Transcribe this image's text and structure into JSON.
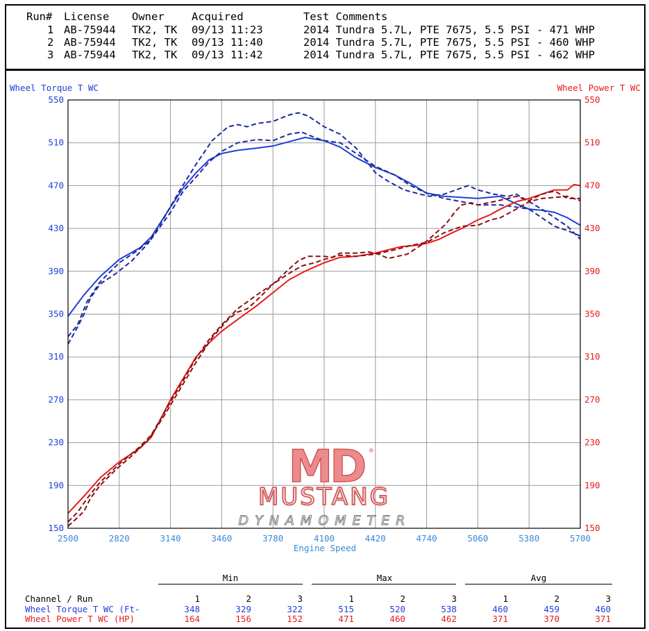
{
  "header": {
    "columns": [
      "Run#",
      "License",
      "Owner",
      "Acquired",
      "Test Comments"
    ],
    "runs": [
      {
        "num": "1",
        "license": "AB-75944",
        "owner": "TK2, TK",
        "acquired": "09/13 11:23",
        "comment": "2014 Tundra 5.7L, PTE 7675, 5.5 PSI - 471 WHP"
      },
      {
        "num": "2",
        "license": "AB-75944",
        "owner": "TK2, TK",
        "acquired": "09/13 11:40",
        "comment": "2014 Tundra 5.7L, PTE 7675, 5.5 PSI - 460 WHP"
      },
      {
        "num": "3",
        "license": "AB-75944",
        "owner": "TK2, TK",
        "acquired": "09/13 11:42",
        "comment": "2014 Tundra 5.7L, PTE 7675, 5.5 PSI - 462 WHP"
      }
    ]
  },
  "chart_data": {
    "type": "line",
    "xlabel": "Engine Speed",
    "ylabel_left": "Wheel Torque T WC",
    "ylabel_right": "Wheel Power T WC",
    "xlim": [
      2500,
      5700
    ],
    "ylim": [
      150,
      550
    ],
    "x_ticks": [
      "2500",
      "2820",
      "3140",
      "3460",
      "3780",
      "4100",
      "4420",
      "4740",
      "5060",
      "5380",
      "5700"
    ],
    "y_ticks": [
      "150",
      "190",
      "230",
      "270",
      "310",
      "350",
      "390",
      "430",
      "470",
      "510",
      "550"
    ],
    "grid": true,
    "colors": {
      "torque_solid": "#1f3fd6",
      "torque_dashed": "#1a2a9a",
      "power_solid": "#e81a1a",
      "power_dashed": "#8b0d0d",
      "left_axis": "#1f3fd6",
      "right_axis": "#e81a1a",
      "tick_text": "#3a8ad6"
    },
    "series": [
      {
        "run": 1,
        "channel": "torque",
        "style": "solid",
        "points": [
          [
            2500,
            348
          ],
          [
            2600,
            368
          ],
          [
            2700,
            385
          ],
          [
            2820,
            401
          ],
          [
            2950,
            412
          ],
          [
            3020,
            422
          ],
          [
            3140,
            450
          ],
          [
            3220,
            468
          ],
          [
            3300,
            482
          ],
          [
            3380,
            494
          ],
          [
            3460,
            500
          ],
          [
            3560,
            503
          ],
          [
            3680,
            505
          ],
          [
            3780,
            507
          ],
          [
            3880,
            511
          ],
          [
            3980,
            515
          ],
          [
            4100,
            512
          ],
          [
            4200,
            506
          ],
          [
            4300,
            496
          ],
          [
            4420,
            487
          ],
          [
            4540,
            480
          ],
          [
            4640,
            472
          ],
          [
            4740,
            463
          ],
          [
            4850,
            460
          ],
          [
            4960,
            459
          ],
          [
            5060,
            458
          ],
          [
            5200,
            460
          ],
          [
            5300,
            453
          ],
          [
            5380,
            448
          ],
          [
            5460,
            447
          ],
          [
            5540,
            445
          ],
          [
            5620,
            440
          ],
          [
            5700,
            433
          ]
        ]
      },
      {
        "run": 2,
        "channel": "torque",
        "style": "dashed",
        "points": [
          [
            2500,
            329
          ],
          [
            2560,
            340
          ],
          [
            2620,
            362
          ],
          [
            2700,
            380
          ],
          [
            2820,
            398
          ],
          [
            2940,
            410
          ],
          [
            3020,
            420
          ],
          [
            3140,
            445
          ],
          [
            3220,
            465
          ],
          [
            3300,
            478
          ],
          [
            3380,
            492
          ],
          [
            3460,
            502
          ],
          [
            3560,
            510
          ],
          [
            3680,
            513
          ],
          [
            3780,
            512
          ],
          [
            3880,
            518
          ],
          [
            3960,
            520
          ],
          [
            4040,
            515
          ],
          [
            4100,
            512
          ],
          [
            4200,
            510
          ],
          [
            4300,
            500
          ],
          [
            4420,
            488
          ],
          [
            4540,
            480
          ],
          [
            4640,
            470
          ],
          [
            4740,
            463
          ],
          [
            4850,
            458
          ],
          [
            4960,
            455
          ],
          [
            5060,
            452
          ],
          [
            5200,
            452
          ],
          [
            5300,
            450
          ],
          [
            5380,
            448
          ],
          [
            5460,
            440
          ],
          [
            5540,
            432
          ],
          [
            5620,
            428
          ],
          [
            5700,
            423
          ]
        ]
      },
      {
        "run": 3,
        "channel": "torque",
        "style": "dashed",
        "points": [
          [
            2500,
            322
          ],
          [
            2560,
            338
          ],
          [
            2600,
            350
          ],
          [
            2640,
            365
          ],
          [
            2700,
            378
          ],
          [
            2800,
            388
          ],
          [
            2900,
            400
          ],
          [
            3000,
            416
          ],
          [
            3100,
            440
          ],
          [
            3200,
            466
          ],
          [
            3300,
            490
          ],
          [
            3400,
            512
          ],
          [
            3500,
            525
          ],
          [
            3560,
            527
          ],
          [
            3620,
            525
          ],
          [
            3680,
            528
          ],
          [
            3780,
            530
          ],
          [
            3880,
            536
          ],
          [
            3940,
            538
          ],
          [
            4000,
            535
          ],
          [
            4100,
            525
          ],
          [
            4200,
            518
          ],
          [
            4300,
            505
          ],
          [
            4380,
            490
          ],
          [
            4420,
            482
          ],
          [
            4500,
            474
          ],
          [
            4600,
            466
          ],
          [
            4700,
            462
          ],
          [
            4760,
            460
          ],
          [
            4850,
            462
          ],
          [
            4960,
            468
          ],
          [
            5000,
            470
          ],
          [
            5060,
            466
          ],
          [
            5160,
            462
          ],
          [
            5250,
            460
          ],
          [
            5300,
            462
          ],
          [
            5380,
            455
          ],
          [
            5460,
            448
          ],
          [
            5540,
            440
          ],
          [
            5620,
            432
          ],
          [
            5700,
            420
          ]
        ]
      },
      {
        "run": 1,
        "channel": "power",
        "style": "solid",
        "points": [
          [
            2500,
            164
          ],
          [
            2600,
            180
          ],
          [
            2700,
            197
          ],
          [
            2820,
            212
          ],
          [
            2950,
            225
          ],
          [
            3020,
            235
          ],
          [
            3140,
            270
          ],
          [
            3220,
            290
          ],
          [
            3300,
            310
          ],
          [
            3380,
            323
          ],
          [
            3460,
            334
          ],
          [
            3560,
            345
          ],
          [
            3680,
            358
          ],
          [
            3780,
            370
          ],
          [
            3880,
            382
          ],
          [
            3980,
            390
          ],
          [
            4100,
            398
          ],
          [
            4200,
            403
          ],
          [
            4300,
            404
          ],
          [
            4420,
            407
          ],
          [
            4500,
            410
          ],
          [
            4580,
            413
          ],
          [
            4660,
            414
          ],
          [
            4740,
            416
          ],
          [
            4820,
            420
          ],
          [
            4900,
            426
          ],
          [
            4960,
            430
          ],
          [
            5060,
            438
          ],
          [
            5140,
            443
          ],
          [
            5200,
            448
          ],
          [
            5300,
            455
          ],
          [
            5380,
            458
          ],
          [
            5460,
            462
          ],
          [
            5540,
            466
          ],
          [
            5620,
            466
          ],
          [
            5660,
            471
          ],
          [
            5700,
            470
          ]
        ]
      },
      {
        "run": 2,
        "channel": "power",
        "style": "dashed",
        "points": [
          [
            2500,
            156
          ],
          [
            2560,
            165
          ],
          [
            2620,
            178
          ],
          [
            2700,
            193
          ],
          [
            2820,
            210
          ],
          [
            2940,
            225
          ],
          [
            3020,
            237
          ],
          [
            3140,
            268
          ],
          [
            3220,
            288
          ],
          [
            3300,
            309
          ],
          [
            3380,
            326
          ],
          [
            3460,
            340
          ],
          [
            3560,
            355
          ],
          [
            3680,
            368
          ],
          [
            3780,
            378
          ],
          [
            3880,
            388
          ],
          [
            3960,
            395
          ],
          [
            4040,
            398
          ],
          [
            4100,
            401
          ],
          [
            4200,
            405
          ],
          [
            4300,
            404
          ],
          [
            4420,
            406
          ],
          [
            4540,
            410
          ],
          [
            4640,
            414
          ],
          [
            4740,
            417
          ],
          [
            4850,
            426
          ],
          [
            4960,
            432
          ],
          [
            5060,
            433
          ],
          [
            5140,
            438
          ],
          [
            5200,
            440
          ],
          [
            5300,
            448
          ],
          [
            5380,
            455
          ],
          [
            5460,
            458
          ],
          [
            5540,
            459
          ],
          [
            5620,
            460
          ],
          [
            5700,
            456
          ]
        ]
      },
      {
        "run": 3,
        "channel": "power",
        "style": "dashed",
        "points": [
          [
            2500,
            152
          ],
          [
            2560,
            160
          ],
          [
            2600,
            166
          ],
          [
            2640,
            178
          ],
          [
            2700,
            190
          ],
          [
            2800,
            205
          ],
          [
            2900,
            218
          ],
          [
            3000,
            232
          ],
          [
            3100,
            255
          ],
          [
            3200,
            280
          ],
          [
            3300,
            305
          ],
          [
            3400,
            328
          ],
          [
            3500,
            345
          ],
          [
            3560,
            352
          ],
          [
            3620,
            355
          ],
          [
            3680,
            363
          ],
          [
            3780,
            378
          ],
          [
            3880,
            392
          ],
          [
            3940,
            400
          ],
          [
            4000,
            404
          ],
          [
            4100,
            404
          ],
          [
            4150,
            403
          ],
          [
            4200,
            407
          ],
          [
            4300,
            407
          ],
          [
            4380,
            408
          ],
          [
            4440,
            406
          ],
          [
            4500,
            402
          ],
          [
            4560,
            404
          ],
          [
            4620,
            406
          ],
          [
            4680,
            412
          ],
          [
            4740,
            418
          ],
          [
            4800,
            426
          ],
          [
            4860,
            434
          ],
          [
            4920,
            446
          ],
          [
            4960,
            452
          ],
          [
            5020,
            454
          ],
          [
            5060,
            452
          ],
          [
            5160,
            455
          ],
          [
            5250,
            458
          ],
          [
            5300,
            460
          ],
          [
            5380,
            456
          ],
          [
            5460,
            462
          ],
          [
            5540,
            465
          ],
          [
            5620,
            458
          ],
          [
            5700,
            458
          ]
        ]
      }
    ]
  },
  "logo": {
    "brand": "MD",
    "name": "MUSTANG",
    "sub": "DYNAMOMETER",
    "mark": "®"
  },
  "summary": {
    "groups": [
      "Min",
      "Max",
      "Avg"
    ],
    "row_header": "Channel / Run",
    "runs": [
      "1",
      "2",
      "3"
    ],
    "rows": [
      {
        "label": "Wheel Torque T WC (Ft-",
        "color": "#1f3fd6",
        "values": [
          "348",
          "329",
          "322",
          "515",
          "520",
          "538",
          "460",
          "459",
          "460"
        ]
      },
      {
        "label": "Wheel Power T WC (HP)",
        "color": "#e81a1a",
        "values": [
          "164",
          "156",
          "152",
          "471",
          "460",
          "462",
          "371",
          "370",
          "371"
        ]
      }
    ]
  }
}
